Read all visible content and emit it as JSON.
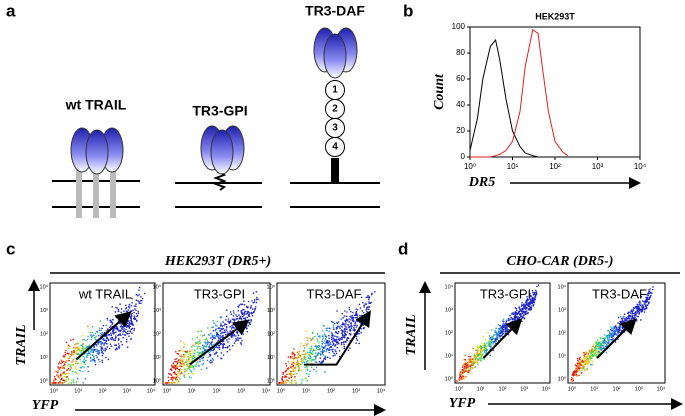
{
  "panels": {
    "a": {
      "letter": "a",
      "constructs": [
        "wt TRAIL",
        "TR3-GPI",
        "TR3-DAF"
      ],
      "domains": [
        "1",
        "2",
        "3",
        "4"
      ]
    },
    "b": {
      "letter": "b"
    },
    "c": {
      "letter": "c",
      "title": "HEK293T (DR5+)",
      "plots": [
        "wt TRAIL",
        "TR3-GPI",
        "TR3-DAF"
      ],
      "ylabel": "TRAIL",
      "xlabel": "YFP",
      "ticks": [
        "10⁰",
        "10¹",
        "10²",
        "10³",
        "10⁴"
      ]
    },
    "d": {
      "letter": "d",
      "title": "CHO-CAR (DR5-)",
      "plots": [
        "TR3-GPI",
        "TR3-DAF"
      ],
      "ylabel": "TRAIL",
      "xlabel": "YFP",
      "ticks": [
        "10⁰",
        "10¹",
        "10²",
        "10³",
        "10⁴"
      ]
    }
  },
  "chart_data": {
    "type": "line",
    "title": "HEK293T",
    "ylabel": "Count",
    "xlabel": "DR5",
    "xscale": "log",
    "x": [
      1,
      1.5,
      2,
      3,
      4,
      5,
      7,
      10,
      15,
      20,
      30,
      40,
      50,
      70,
      100,
      150,
      200
    ],
    "series": [
      {
        "color": "#000000",
        "values": [
          5,
          30,
          60,
          85,
          90,
          75,
          45,
          20,
          8,
          3,
          1,
          0,
          0,
          0,
          0,
          0,
          0
        ]
      },
      {
        "color": "#e8211d",
        "values": [
          0,
          0,
          0,
          0,
          1,
          2,
          5,
          12,
          35,
          70,
          98,
          95,
          70,
          35,
          12,
          4,
          1
        ]
      }
    ],
    "xlim": [
      1,
      10000
    ],
    "xticks": [
      {
        "value": 1,
        "label": "10⁰"
      },
      {
        "value": 10,
        "label": "10¹"
      },
      {
        "value": 100,
        "label": "10²"
      },
      {
        "value": 1000,
        "label": "10³"
      },
      {
        "value": 10000,
        "label": "10⁴"
      }
    ],
    "ylim": [
      0,
      100
    ],
    "yticks": [
      0,
      20,
      40,
      60,
      80,
      100
    ]
  }
}
